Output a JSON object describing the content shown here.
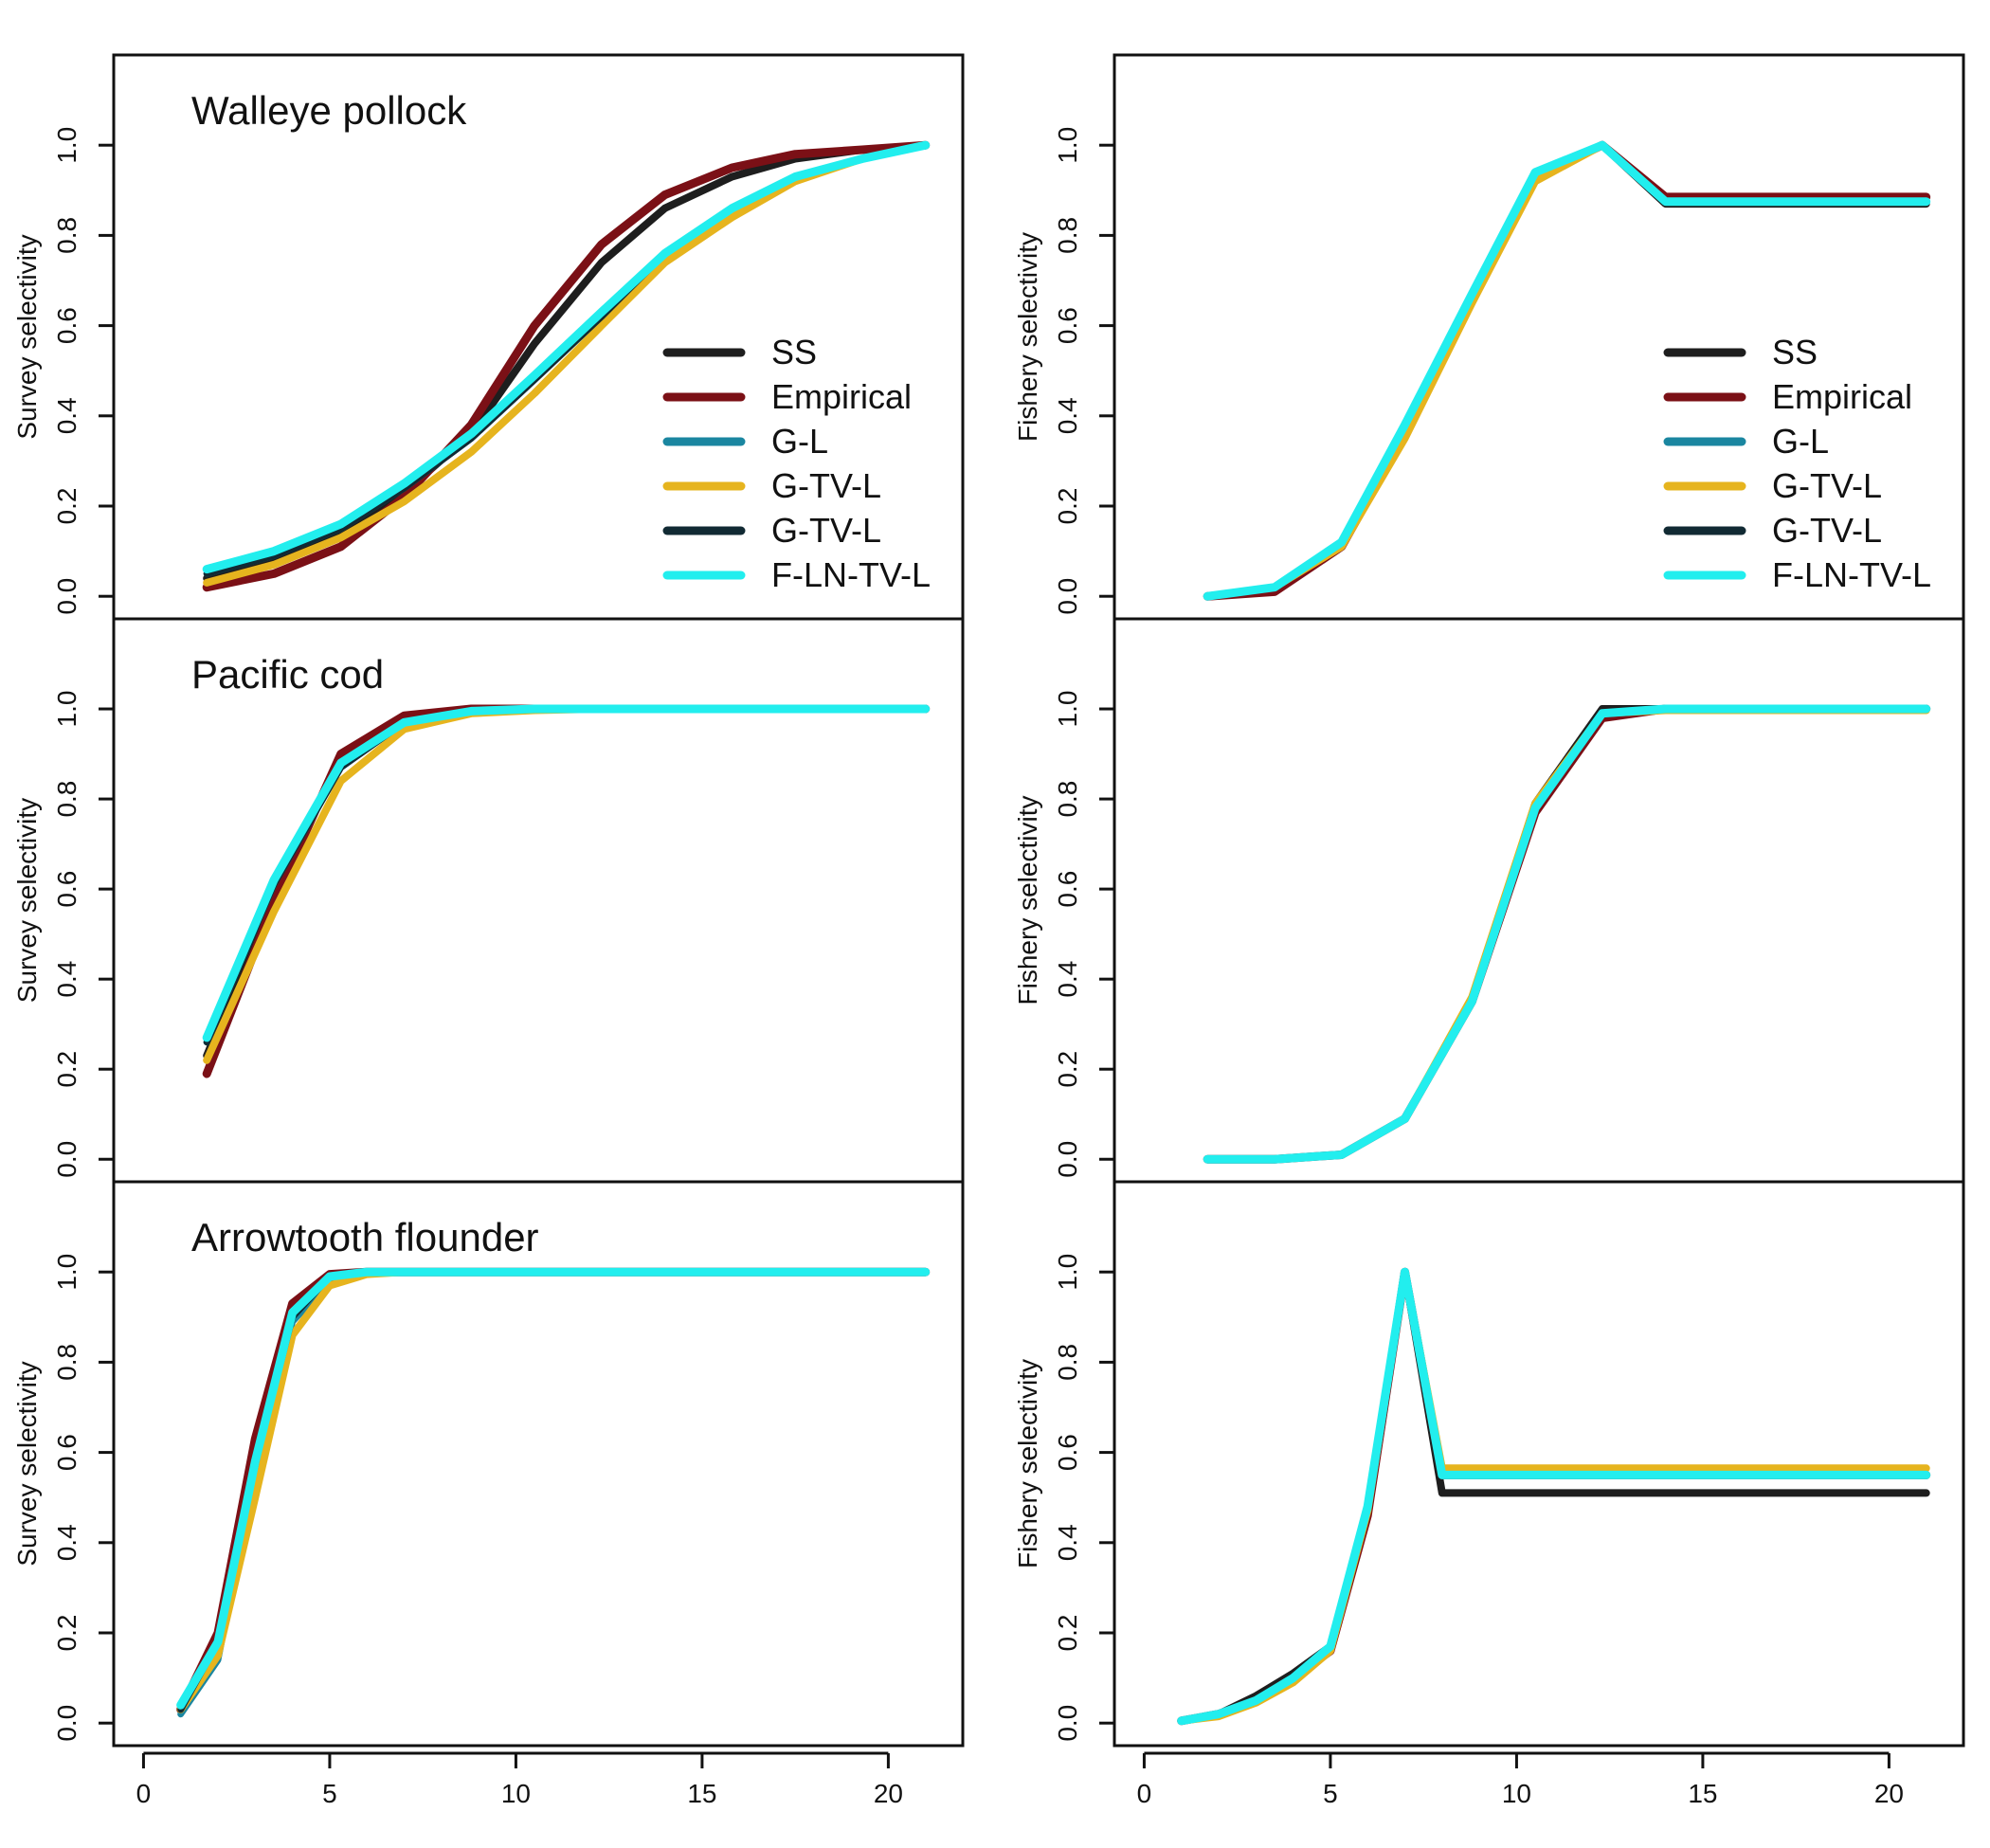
{
  "figure": {
    "x_ticks": [
      0,
      5,
      10,
      15,
      20
    ],
    "y_ticks": [
      0.0,
      0.2,
      0.4,
      0.6,
      0.8,
      1.0
    ],
    "xlim": [
      -0.8,
      22.0
    ],
    "ylim": [
      -0.05,
      1.2
    ]
  },
  "legend": [
    {
      "label": "SS",
      "color": "#1e1e1e"
    },
    {
      "label": "Empirical",
      "color": "#7b1016"
    },
    {
      "label": "G-L",
      "color": "#1a86a0"
    },
    {
      "label": "G-TV-L",
      "color": "#e6b41e"
    },
    {
      "label": "G-TV-L",
      "color": "#112a33"
    },
    {
      "label": "F-LN-TV-L",
      "color": "#22eeee"
    }
  ],
  "chart_data": [
    {
      "type": "line",
      "title": "Walleye pollock",
      "ylabel": "Survey selectivity",
      "show_xaxis": false,
      "legend": true,
      "x": [
        1.7,
        3.5,
        5.3,
        7.0,
        8.8,
        10.5,
        12.3,
        14.0,
        15.8,
        17.5,
        19.3,
        21.0
      ],
      "series": [
        {
          "name": "SS",
          "values": [
            0.04,
            0.08,
            0.14,
            0.23,
            0.36,
            0.56,
            0.74,
            0.86,
            0.93,
            0.97,
            0.99,
            1.0
          ]
        },
        {
          "name": "Empirical",
          "values": [
            0.02,
            0.05,
            0.11,
            0.22,
            0.38,
            0.6,
            0.78,
            0.89,
            0.95,
            0.98,
            0.99,
            1.0
          ]
        },
        {
          "name": "G-L",
          "values": [
            0.05,
            0.09,
            0.15,
            0.24,
            0.35,
            0.48,
            0.62,
            0.76,
            0.86,
            0.93,
            0.97,
            1.0
          ]
        },
        {
          "name": "G-TV-L",
          "values": [
            0.03,
            0.07,
            0.13,
            0.21,
            0.32,
            0.45,
            0.6,
            0.74,
            0.84,
            0.92,
            0.97,
            1.0
          ]
        },
        {
          "name": "G-TV-L",
          "values": [
            0.05,
            0.09,
            0.15,
            0.24,
            0.35,
            0.48,
            0.62,
            0.76,
            0.86,
            0.93,
            0.97,
            1.0
          ]
        },
        {
          "name": "F-LN-TV-L",
          "values": [
            0.06,
            0.1,
            0.16,
            0.25,
            0.36,
            0.49,
            0.63,
            0.76,
            0.86,
            0.93,
            0.97,
            1.0
          ]
        }
      ]
    },
    {
      "type": "line",
      "title": "",
      "ylabel": "Fishery selectivity",
      "show_xaxis": false,
      "legend": true,
      "x": [
        1.7,
        3.5,
        5.3,
        7.0,
        8.8,
        10.5,
        12.3,
        14.0,
        15.8,
        17.5,
        19.3,
        21.0
      ],
      "series": [
        {
          "name": "SS",
          "values": [
            0.0,
            0.02,
            0.12,
            0.38,
            0.67,
            0.94,
            1.0,
            0.87,
            0.87,
            0.87,
            0.87,
            0.87
          ]
        },
        {
          "name": "Empirical",
          "values": [
            0.0,
            0.01,
            0.11,
            0.36,
            0.66,
            0.93,
            1.0,
            0.885,
            0.885,
            0.885,
            0.885,
            0.885
          ]
        },
        {
          "name": "G-L",
          "values": [
            0.0,
            0.02,
            0.12,
            0.38,
            0.67,
            0.94,
            1.0,
            0.875,
            0.875,
            0.875,
            0.875,
            0.875
          ]
        },
        {
          "name": "G-TV-L",
          "values": [
            0.0,
            0.02,
            0.11,
            0.35,
            0.65,
            0.92,
            1.0,
            0.875,
            0.875,
            0.875,
            0.875,
            0.875
          ]
        },
        {
          "name": "G-TV-L",
          "values": [
            0.0,
            0.02,
            0.12,
            0.38,
            0.67,
            0.94,
            1.0,
            0.875,
            0.875,
            0.875,
            0.875,
            0.875
          ]
        },
        {
          "name": "F-LN-TV-L",
          "values": [
            0.0,
            0.02,
            0.12,
            0.38,
            0.67,
            0.94,
            1.0,
            0.875,
            0.875,
            0.875,
            0.875,
            0.875
          ]
        }
      ]
    },
    {
      "type": "line",
      "title": "Pacific cod",
      "ylabel": "Survey selectivity",
      "show_xaxis": false,
      "legend": false,
      "x": [
        1.7,
        3.5,
        5.3,
        7.0,
        8.8,
        10.5,
        12.3,
        14.0,
        15.8,
        17.5,
        19.3,
        21.0
      ],
      "series": [
        {
          "name": "SS",
          "values": [
            0.23,
            0.59,
            0.89,
            0.98,
            1.0,
            1.0,
            1.0,
            1.0,
            1.0,
            1.0,
            1.0,
            1.0
          ]
        },
        {
          "name": "Empirical",
          "values": [
            0.19,
            0.57,
            0.9,
            0.985,
            1.0,
            1.0,
            1.0,
            1.0,
            1.0,
            1.0,
            1.0,
            1.0
          ]
        },
        {
          "name": "G-L",
          "values": [
            0.26,
            0.61,
            0.87,
            0.97,
            0.995,
            1.0,
            1.0,
            1.0,
            1.0,
            1.0,
            1.0,
            1.0
          ]
        },
        {
          "name": "G-TV-L",
          "values": [
            0.22,
            0.55,
            0.84,
            0.955,
            0.99,
            0.997,
            1.0,
            1.0,
            1.0,
            1.0,
            1.0,
            1.0
          ]
        },
        {
          "name": "G-TV-L",
          "values": [
            0.26,
            0.61,
            0.87,
            0.97,
            0.995,
            1.0,
            1.0,
            1.0,
            1.0,
            1.0,
            1.0,
            1.0
          ]
        },
        {
          "name": "F-LN-TV-L",
          "values": [
            0.27,
            0.62,
            0.88,
            0.97,
            0.995,
            1.0,
            1.0,
            1.0,
            1.0,
            1.0,
            1.0,
            1.0
          ]
        }
      ]
    },
    {
      "type": "line",
      "title": "",
      "ylabel": "Fishery selectivity",
      "show_xaxis": false,
      "legend": false,
      "x": [
        1.7,
        3.5,
        5.3,
        7.0,
        8.8,
        10.5,
        12.3,
        14.0,
        15.8,
        17.5,
        19.3,
        21.0
      ],
      "series": [
        {
          "name": "SS",
          "values": [
            0.0,
            0.0,
            0.01,
            0.09,
            0.35,
            0.79,
            1.0,
            1.0,
            1.0,
            1.0,
            1.0,
            1.0
          ]
        },
        {
          "name": "Empirical",
          "values": [
            0.0,
            0.0,
            0.01,
            0.09,
            0.35,
            0.77,
            0.98,
            1.0,
            1.0,
            1.0,
            1.0,
            1.0
          ]
        },
        {
          "name": "G-L",
          "values": [
            0.0,
            0.0,
            0.01,
            0.09,
            0.35,
            0.78,
            0.99,
            1.0,
            1.0,
            1.0,
            1.0,
            1.0
          ]
        },
        {
          "name": "G-TV-L",
          "values": [
            0.0,
            0.0,
            0.01,
            0.09,
            0.36,
            0.79,
            0.99,
            0.997,
            0.997,
            0.997,
            0.997,
            0.997
          ]
        },
        {
          "name": "G-TV-L",
          "values": [
            0.0,
            0.0,
            0.01,
            0.09,
            0.35,
            0.78,
            0.99,
            1.0,
            1.0,
            1.0,
            1.0,
            1.0
          ]
        },
        {
          "name": "F-LN-TV-L",
          "values": [
            0.0,
            0.0,
            0.01,
            0.09,
            0.35,
            0.78,
            0.99,
            1.0,
            1.0,
            1.0,
            1.0,
            1.0
          ]
        }
      ]
    },
    {
      "type": "line",
      "title": "Arrowtooth flounder",
      "ylabel": "Survey selectivity",
      "show_xaxis": true,
      "legend": false,
      "x": [
        1,
        2,
        3,
        4,
        5,
        6,
        7,
        8,
        9,
        10,
        11,
        12,
        13,
        14,
        15,
        16,
        17,
        18,
        19,
        20,
        21
      ],
      "series": [
        {
          "name": "SS",
          "values": [
            0.03,
            0.2,
            0.62,
            0.92,
            0.995,
            1.0,
            1.0,
            1.0,
            1.0,
            1.0,
            1.0,
            1.0,
            1.0,
            1.0,
            1.0,
            1.0,
            1.0,
            1.0,
            1.0,
            1.0,
            1.0
          ]
        },
        {
          "name": "Empirical",
          "values": [
            0.03,
            0.2,
            0.63,
            0.93,
            0.995,
            1.0,
            1.0,
            1.0,
            1.0,
            1.0,
            1.0,
            1.0,
            1.0,
            1.0,
            1.0,
            1.0,
            1.0,
            1.0,
            1.0,
            1.0,
            1.0
          ]
        },
        {
          "name": "G-L",
          "values": [
            0.02,
            0.14,
            0.56,
            0.89,
            0.98,
            0.997,
            1.0,
            1.0,
            1.0,
            1.0,
            1.0,
            1.0,
            1.0,
            1.0,
            1.0,
            1.0,
            1.0,
            1.0,
            1.0,
            1.0,
            1.0
          ]
        },
        {
          "name": "G-TV-L",
          "values": [
            0.03,
            0.15,
            0.5,
            0.86,
            0.97,
            0.995,
            1.0,
            1.0,
            1.0,
            1.0,
            1.0,
            1.0,
            1.0,
            1.0,
            1.0,
            1.0,
            1.0,
            1.0,
            1.0,
            1.0,
            1.0
          ]
        },
        {
          "name": "G-TV-L",
          "values": [
            0.03,
            0.18,
            0.58,
            0.9,
            0.99,
            1.0,
            1.0,
            1.0,
            1.0,
            1.0,
            1.0,
            1.0,
            1.0,
            1.0,
            1.0,
            1.0,
            1.0,
            1.0,
            1.0,
            1.0,
            1.0
          ]
        },
        {
          "name": "F-LN-TV-L",
          "values": [
            0.04,
            0.18,
            0.58,
            0.91,
            0.99,
            1.0,
            1.0,
            1.0,
            1.0,
            1.0,
            1.0,
            1.0,
            1.0,
            1.0,
            1.0,
            1.0,
            1.0,
            1.0,
            1.0,
            1.0,
            1.0
          ]
        }
      ]
    },
    {
      "type": "line",
      "title": "",
      "ylabel": "Fishery selectivity",
      "show_xaxis": true,
      "legend": false,
      "x": [
        1,
        2,
        3,
        4,
        5,
        6,
        7,
        8,
        9,
        10,
        11,
        12,
        13,
        14,
        15,
        16,
        17,
        18,
        19,
        20,
        21
      ],
      "series": [
        {
          "name": "SS",
          "values": [
            0.005,
            0.02,
            0.06,
            0.11,
            0.17,
            0.47,
            1.0,
            0.51,
            0.51,
            0.51,
            0.51,
            0.51,
            0.51,
            0.51,
            0.51,
            0.51,
            0.51,
            0.51,
            0.51,
            0.51,
            0.51
          ]
        },
        {
          "name": "Empirical",
          "values": [
            0.005,
            0.02,
            0.05,
            0.1,
            0.16,
            0.46,
            1.0,
            0.55,
            0.55,
            0.55,
            0.55,
            0.55,
            0.55,
            0.55,
            0.55,
            0.55,
            0.55,
            0.55,
            0.55,
            0.55,
            0.55
          ]
        },
        {
          "name": "G-L",
          "values": [
            0.005,
            0.02,
            0.05,
            0.1,
            0.17,
            0.48,
            1.0,
            0.55,
            0.55,
            0.55,
            0.55,
            0.55,
            0.55,
            0.55,
            0.55,
            0.55,
            0.55,
            0.55,
            0.55,
            0.55,
            0.55
          ]
        },
        {
          "name": "G-TV-L",
          "values": [
            0.005,
            0.015,
            0.045,
            0.09,
            0.16,
            0.47,
            1.0,
            0.565,
            0.565,
            0.565,
            0.565,
            0.565,
            0.565,
            0.565,
            0.565,
            0.565,
            0.565,
            0.565,
            0.565,
            0.565,
            0.565
          ]
        },
        {
          "name": "G-TV-L",
          "values": [
            0.005,
            0.02,
            0.05,
            0.1,
            0.17,
            0.48,
            1.0,
            0.55,
            0.55,
            0.55,
            0.55,
            0.55,
            0.55,
            0.55,
            0.55,
            0.55,
            0.55,
            0.55,
            0.55,
            0.55,
            0.55
          ]
        },
        {
          "name": "F-LN-TV-L",
          "values": [
            0.005,
            0.02,
            0.05,
            0.1,
            0.17,
            0.48,
            1.0,
            0.55,
            0.55,
            0.55,
            0.55,
            0.55,
            0.55,
            0.55,
            0.55,
            0.55,
            0.55,
            0.55,
            0.55,
            0.55,
            0.55
          ]
        }
      ]
    }
  ]
}
